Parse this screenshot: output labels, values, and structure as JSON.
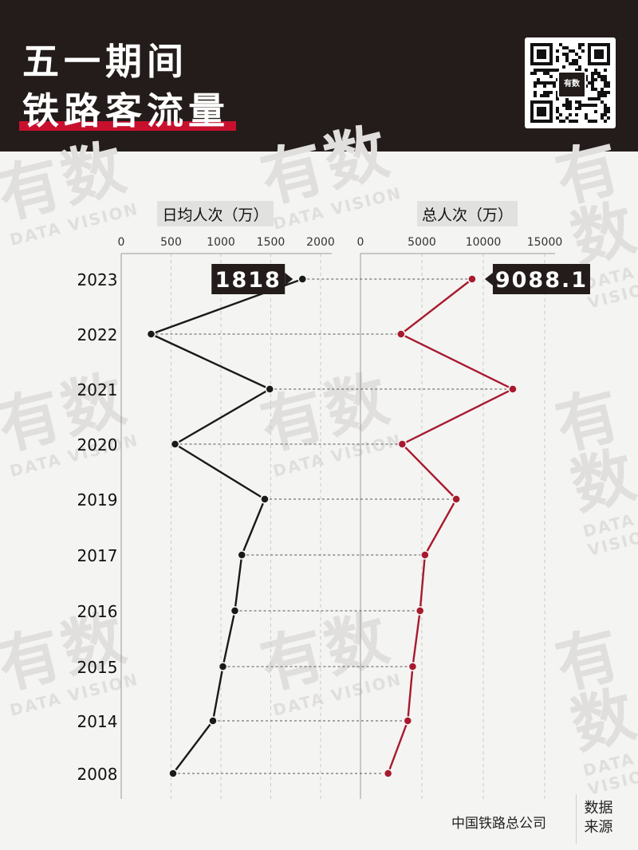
{
  "header": {
    "title_line1": "五一期间",
    "title_line2": "铁路客流量",
    "qr_badge": "有数"
  },
  "watermark": {
    "text": "有数",
    "subtext": "DATA VISION"
  },
  "footer": {
    "source": "中国铁路总公司",
    "source_label_line1": "数据",
    "source_label_line2": "来源"
  },
  "colors": {
    "header_bg": "#231c1b",
    "accent_red": "#c8102e",
    "series_daily": "#1a1a1a",
    "series_total": "#a8192e",
    "label_bg": "#231c1b"
  },
  "chart_data": [
    {
      "type": "line",
      "orientation": "vertical",
      "title": "日均人次（万）",
      "categories": [
        "2023",
        "2022",
        "2021",
        "2020",
        "2019",
        "2017",
        "2016",
        "2015",
        "2014",
        "2008"
      ],
      "values": [
        1818,
        300,
        1490,
        540,
        1440,
        1210,
        1140,
        1020,
        920,
        520
      ],
      "xlim": [
        0,
        2000
      ],
      "ticks": [
        "0",
        "500",
        "1000",
        "1500",
        "2000"
      ],
      "tick_values": [
        0,
        500,
        1000,
        1500,
        2000
      ],
      "highlight_label": "1818",
      "grid": true
    },
    {
      "type": "line",
      "orientation": "vertical",
      "title": "总人次（万）",
      "categories": [
        "2023",
        "2022",
        "2021",
        "2020",
        "2019",
        "2017",
        "2016",
        "2015",
        "2014",
        "2008"
      ],
      "values": [
        9088.1,
        3300,
        12400,
        3400,
        7800,
        5250,
        4850,
        4250,
        3850,
        2250
      ],
      "xlim": [
        0,
        15000
      ],
      "ticks": [
        "0",
        "5000",
        "10000",
        "15000"
      ],
      "tick_values": [
        0,
        5000,
        10000,
        15000
      ],
      "highlight_label": "9088.1",
      "grid": true
    }
  ]
}
